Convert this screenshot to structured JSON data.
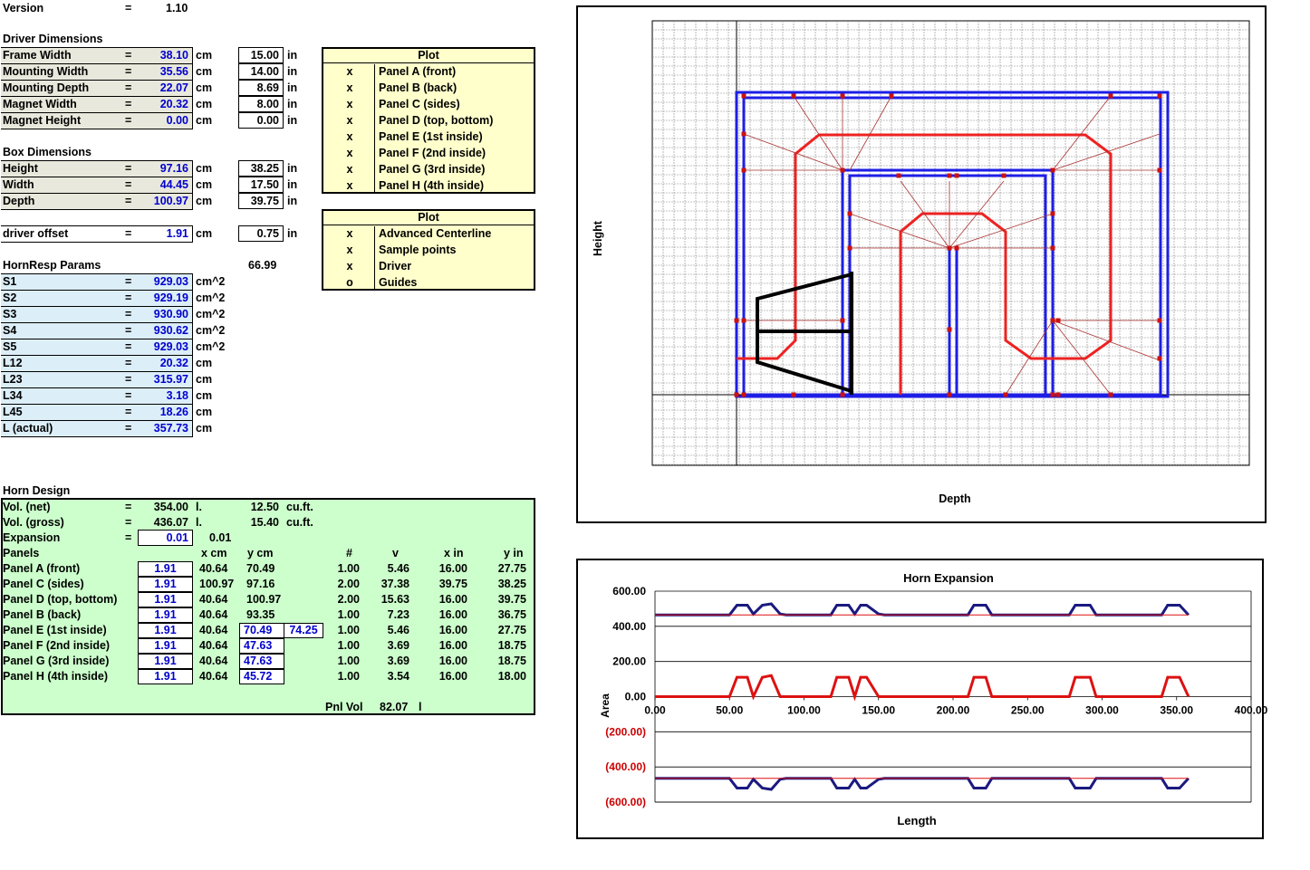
{
  "version": {
    "label": "Version",
    "eq": "=",
    "value": "1.10"
  },
  "driver": {
    "heading": "Driver Dimensions",
    "rows": [
      {
        "label": "Frame Width",
        "eq": "=",
        "cm": "38.10",
        "unit": "cm",
        "inches": "15.00",
        "iunit": "in"
      },
      {
        "label": "Mounting Width",
        "eq": "=",
        "cm": "35.56",
        "unit": "cm",
        "inches": "14.00",
        "iunit": "in"
      },
      {
        "label": "Mounting Depth",
        "eq": "=",
        "cm": "22.07",
        "unit": "cm",
        "inches": "8.69",
        "iunit": "in"
      },
      {
        "label": "Magnet Width",
        "eq": "=",
        "cm": "20.32",
        "unit": "cm",
        "inches": "8.00",
        "iunit": "in"
      },
      {
        "label": "Magnet Height",
        "eq": "=",
        "cm": "0.00",
        "unit": "cm",
        "inches": "0.00",
        "iunit": "in"
      }
    ]
  },
  "box": {
    "heading": "Box Dimensions",
    "rows": [
      {
        "label": "Height",
        "eq": "=",
        "cm": "97.16",
        "unit": "cm",
        "inches": "38.25",
        "iunit": "in"
      },
      {
        "label": "Width",
        "eq": "=",
        "cm": "44.45",
        "unit": "cm",
        "inches": "17.50",
        "iunit": "in"
      },
      {
        "label": "Depth",
        "eq": "=",
        "cm": "100.97",
        "unit": "cm",
        "inches": "39.75",
        "iunit": "in"
      }
    ]
  },
  "offset": {
    "label": "driver offset",
    "eq": "=",
    "cm": "1.91",
    "unit": "cm",
    "inches": "0.75",
    "iunit": "in"
  },
  "hornresp": {
    "heading": "HornResp Params",
    "extra": "66.99",
    "rows": [
      {
        "label": "S1",
        "eq": "=",
        "value": "929.03",
        "unit": "cm^2"
      },
      {
        "label": "S2",
        "eq": "=",
        "value": "929.19",
        "unit": "cm^2"
      },
      {
        "label": "S3",
        "eq": "=",
        "value": "930.90",
        "unit": "cm^2"
      },
      {
        "label": "S4",
        "eq": "=",
        "value": "930.62",
        "unit": "cm^2"
      },
      {
        "label": "S5",
        "eq": "=",
        "value": "929.03",
        "unit": "cm^2"
      },
      {
        "label": "L12",
        "eq": "=",
        "value": "20.32",
        "unit": "cm"
      },
      {
        "label": "L23",
        "eq": "=",
        "value": "315.97",
        "unit": "cm"
      },
      {
        "label": "L34",
        "eq": "=",
        "value": "3.18",
        "unit": "cm"
      },
      {
        "label": "L45",
        "eq": "=",
        "value": "18.26",
        "unit": "cm"
      },
      {
        "label": "L (actual)",
        "eq": "=",
        "value": "357.73",
        "unit": "cm"
      }
    ]
  },
  "plot1": {
    "heading": "Plot",
    "rows": [
      {
        "mark": "x",
        "label": "Panel A (front)"
      },
      {
        "mark": "x",
        "label": "Panel B (back)"
      },
      {
        "mark": "x",
        "label": "Panel C (sides)"
      },
      {
        "mark": "x",
        "label": "Panel D (top, bottom)"
      },
      {
        "mark": "x",
        "label": "Panel E (1st inside)"
      },
      {
        "mark": "x",
        "label": "Panel F (2nd inside)"
      },
      {
        "mark": "x",
        "label": "Panel G (3rd inside)"
      },
      {
        "mark": "x",
        "label": "Panel H (4th inside)"
      }
    ]
  },
  "plot2": {
    "heading": "Plot",
    "rows": [
      {
        "mark": "x",
        "label": "Advanced Centerline"
      },
      {
        "mark": "x",
        "label": "Sample points"
      },
      {
        "mark": "x",
        "label": "Driver"
      },
      {
        "mark": "o",
        "label": "Guides"
      }
    ]
  },
  "horn": {
    "heading": "Horn Design",
    "vol_net": {
      "label": "Vol. (net)",
      "eq": "=",
      "value": "354.00",
      "unit": "l.",
      "cuft": "12.50",
      "cuunit": "cu.ft."
    },
    "vol_gross": {
      "label": "Vol. (gross)",
      "eq": "=",
      "value": "436.07",
      "unit": "l.",
      "cuft": "15.40",
      "cuunit": "cu.ft."
    },
    "expansion": {
      "label": "Expansion",
      "eq": "=",
      "value": "0.01",
      "value2": "0.01"
    },
    "headers": {
      "panels": "Panels",
      "xcm": "x cm",
      "ycm": "y cm",
      "num": "#",
      "v": "v",
      "xin": "x in",
      "yin": "y in"
    },
    "rows": [
      {
        "label": "Panel A (front)",
        "t": "1.91",
        "xcm": "40.64",
        "ycm": "70.49",
        "extra": "",
        "num": "1.00",
        "v": "5.46",
        "xin": "16.00",
        "yin": "27.75",
        "boxed": false
      },
      {
        "label": "Panel C (sides)",
        "t": "1.91",
        "xcm": "100.97",
        "ycm": "97.16",
        "extra": "",
        "num": "2.00",
        "v": "37.38",
        "xin": "39.75",
        "yin": "38.25",
        "boxed": false
      },
      {
        "label": "Panel D (top, bottom)",
        "t": "1.91",
        "xcm": "40.64",
        "ycm": "100.97",
        "extra": "",
        "num": "2.00",
        "v": "15.63",
        "xin": "16.00",
        "yin": "39.75",
        "boxed": false
      },
      {
        "label": "Panel B (back)",
        "t": "1.91",
        "xcm": "40.64",
        "ycm": "93.35",
        "extra": "",
        "num": "1.00",
        "v": "7.23",
        "xin": "16.00",
        "yin": "36.75",
        "boxed": false
      },
      {
        "label": "Panel E (1st inside)",
        "t": "1.91",
        "xcm": "40.64",
        "ycm": "70.49",
        "extra": "74.25",
        "num": "1.00",
        "v": "5.46",
        "xin": "16.00",
        "yin": "27.75",
        "boxed": true
      },
      {
        "label": "Panel F (2nd inside)",
        "t": "1.91",
        "xcm": "40.64",
        "ycm": "47.63",
        "extra": "",
        "num": "1.00",
        "v": "3.69",
        "xin": "16.00",
        "yin": "18.75",
        "boxed": true
      },
      {
        "label": "Panel G (3rd inside)",
        "t": "1.91",
        "xcm": "40.64",
        "ycm": "47.63",
        "extra": "",
        "num": "1.00",
        "v": "3.69",
        "xin": "16.00",
        "yin": "18.75",
        "boxed": true
      },
      {
        "label": "Panel H (4th inside)",
        "t": "1.91",
        "xcm": "40.64",
        "ycm": "45.72",
        "extra": "",
        "num": "1.00",
        "v": "3.54",
        "xin": "16.00",
        "yin": "18.00",
        "boxed": true
      }
    ],
    "pnl_vol": {
      "label": "Pnl Vol",
      "value": "82.07",
      "unit": "l"
    }
  },
  "chart_data": [
    {
      "type": "other",
      "xlabel": "Depth",
      "ylabel": "Height",
      "colors": {
        "outer": "#1e1ee6",
        "horn": "#ee2222",
        "centerline": "#aa3333",
        "driver": "#000000",
        "grid": "#888888"
      }
    },
    {
      "type": "line",
      "title": "Horn Expansion",
      "xlabel": "Length",
      "ylabel": "Area",
      "xlim": [
        0,
        400
      ],
      "ylim": [
        -600,
        600
      ],
      "xticks": [
        "0.00",
        "50.00",
        "100.00",
        "150.00",
        "200.00",
        "250.00",
        "300.00",
        "350.00",
        "400.00"
      ],
      "yticks": [
        "600.00",
        "400.00",
        "200.00",
        "0.00",
        "(200.00)",
        "(400.00)",
        "(600.00)"
      ],
      "series": [
        {
          "color": "#1a1a80",
          "x": [
            0,
            50,
            55,
            62,
            66,
            72,
            78,
            84,
            88,
            118,
            122,
            130,
            134,
            138,
            142,
            150,
            154,
            210,
            214,
            222,
            226,
            278,
            282,
            292,
            296,
            340,
            344,
            352,
            358
          ],
          "values": [
            465,
            465,
            520,
            520,
            470,
            520,
            528,
            470,
            465,
            465,
            520,
            520,
            470,
            520,
            520,
            470,
            465,
            465,
            520,
            520,
            465,
            465,
            520,
            520,
            465,
            465,
            520,
            520,
            465
          ]
        },
        {
          "color": "#dd1111",
          "x": [
            0,
            50,
            55,
            62,
            66,
            72,
            78,
            84,
            88,
            118,
            122,
            130,
            134,
            138,
            142,
            150,
            154,
            210,
            214,
            222,
            226,
            278,
            282,
            292,
            296,
            340,
            344,
            352,
            358
          ],
          "values": [
            0,
            0,
            110,
            110,
            0,
            110,
            120,
            0,
            0,
            0,
            110,
            110,
            0,
            110,
            110,
            0,
            0,
            0,
            110,
            110,
            0,
            0,
            110,
            110,
            0,
            0,
            110,
            110,
            0
          ]
        },
        {
          "color": "#1a1a80",
          "x": [
            0,
            50,
            55,
            62,
            66,
            72,
            78,
            84,
            88,
            118,
            122,
            130,
            134,
            138,
            142,
            150,
            154,
            210,
            214,
            222,
            226,
            278,
            282,
            292,
            296,
            340,
            344,
            352,
            358
          ],
          "values": [
            -465,
            -465,
            -520,
            -520,
            -470,
            -520,
            -528,
            -470,
            -465,
            -465,
            -520,
            -520,
            -470,
            -520,
            -520,
            -470,
            -465,
            -465,
            -520,
            -520,
            -465,
            -465,
            -520,
            -520,
            -465,
            -465,
            -520,
            -520,
            -465
          ]
        },
        {
          "color": "#dd1111",
          "x": [
            0,
            358
          ],
          "values": [
            465,
            465
          ]
        },
        {
          "color": "#dd1111",
          "x": [
            0,
            358
          ],
          "values": [
            -465,
            -465
          ]
        }
      ]
    }
  ]
}
